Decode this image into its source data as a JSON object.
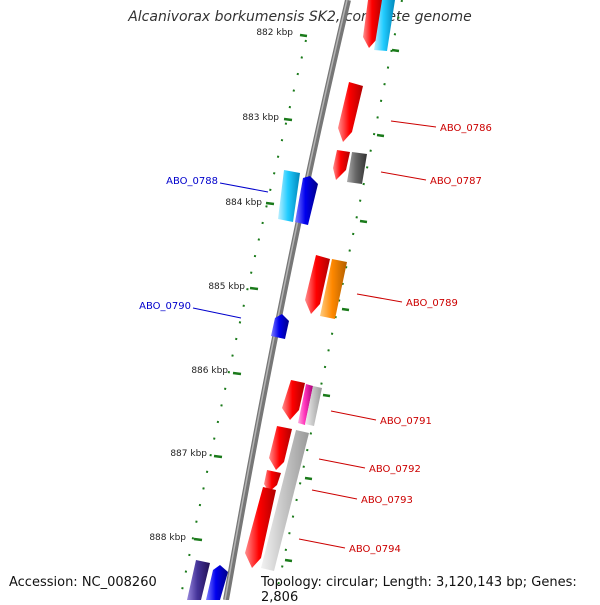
{
  "title": "Alcanivorax borkumensis SK2, complete genome",
  "footer": {
    "accession": "Accession: NC_008260",
    "summary": "Topology: circular; Length: 3,120,143 bp; Genes: 2,806"
  },
  "ticks": [
    {
      "label": "882 kbp"
    },
    {
      "label": "883 kbp"
    },
    {
      "label": "884 kbp"
    },
    {
      "label": "885 kbp"
    },
    {
      "label": "886 kbp"
    },
    {
      "label": "887 kbp"
    },
    {
      "label": "888 kbp"
    }
  ],
  "gene_labels": {
    "abo_0786": "ABO_0786",
    "abo_0787": "ABO_0787",
    "abo_0788": "ABO_0788",
    "abo_0789": "ABO_0789",
    "abo_0790": "ABO_0790",
    "abo_0791": "ABO_0791",
    "abo_0792": "ABO_0792",
    "abo_0793": "ABO_0793",
    "abo_0794": "ABO_0794"
  },
  "colors": {
    "backbone": "#8a8a8a",
    "forward_label": "#cc0000",
    "reverse_label": "#0000cc",
    "tick": "#1a7a1a",
    "red_gene": "#ff0000",
    "blue_gene": "#0000ee",
    "cyan_gene": "#22ccff",
    "orange_gene": "#ff8800",
    "gray_gene": "#666666",
    "magenta_gene": "#ff33bb",
    "lightgray_gene": "#c8c8c8",
    "navy_gene": "#443399"
  }
}
